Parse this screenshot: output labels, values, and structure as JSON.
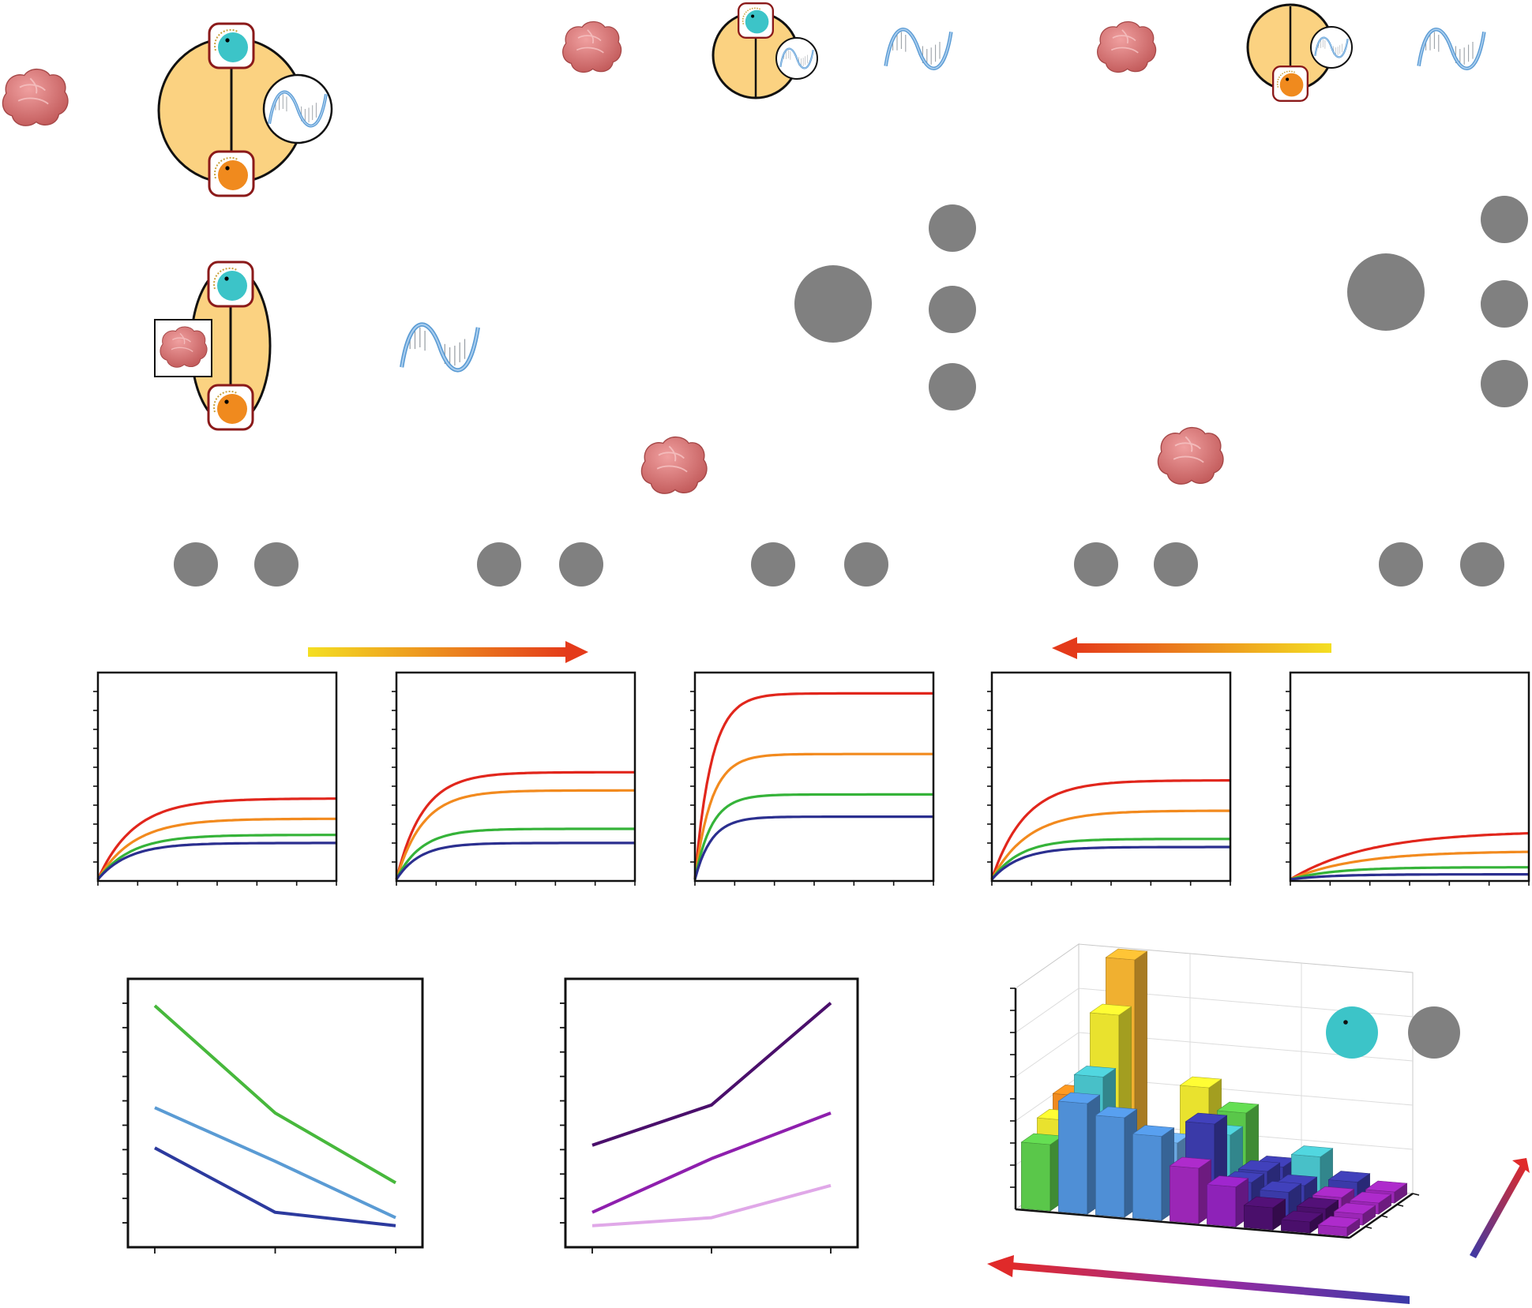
{
  "colors": {
    "cell_fill": "#fbd281",
    "cell_stroke": "#111111",
    "receptor_frame": "#8b1a1a",
    "teal": "#3cc4c8",
    "orange": "#f08a1e",
    "protein": "#d96f6f",
    "gray_disc": "#808080",
    "curve_red": "#e1261c",
    "curve_orange": "#f28a1e",
    "curve_green": "#35b339",
    "curve_blue": "#2b2f8f"
  },
  "icons": {
    "protein": "protein-blob-icon",
    "dna": "dna-helix-icon",
    "receptor": "receptor-dial-icon",
    "disc": "gray-disc-icon"
  },
  "chart_data": [
    {
      "type": "line",
      "panel": 1,
      "x": [
        0,
        1,
        2,
        3,
        4,
        5,
        6,
        7,
        8,
        9,
        10,
        11,
        12
      ],
      "series": [
        {
          "color": "#e1261c",
          "plateau": 0.4,
          "rate": 0.55
        },
        {
          "color": "#f28a1e",
          "plateau": 0.3,
          "rate": 0.55
        },
        {
          "color": "#35b339",
          "plateau": 0.22,
          "rate": 0.6
        },
        {
          "color": "#2b2f8f",
          "plateau": 0.18,
          "rate": 0.65
        }
      ],
      "ylim": [
        0,
        1
      ]
    },
    {
      "type": "line",
      "panel": 2,
      "x": [
        0,
        1,
        2,
        3,
        4,
        5,
        6,
        7,
        8,
        9,
        10,
        11,
        12
      ],
      "series": [
        {
          "color": "#e1261c",
          "plateau": 0.53,
          "rate": 0.75
        },
        {
          "color": "#f28a1e",
          "plateau": 0.44,
          "rate": 0.75
        },
        {
          "color": "#35b339",
          "plateau": 0.25,
          "rate": 0.8
        },
        {
          "color": "#2b2f8f",
          "plateau": 0.18,
          "rate": 0.85
        }
      ],
      "ylim": [
        0,
        1
      ]
    },
    {
      "type": "line",
      "panel": 3,
      "x": [
        0,
        1,
        2,
        3,
        4,
        5,
        6,
        7,
        8,
        9,
        10,
        11,
        12
      ],
      "series": [
        {
          "color": "#e1261c",
          "plateau": 0.92,
          "rate": 1.2
        },
        {
          "color": "#f28a1e",
          "plateau": 0.62,
          "rate": 1.2
        },
        {
          "color": "#35b339",
          "plateau": 0.42,
          "rate": 1.2
        },
        {
          "color": "#2b2f8f",
          "plateau": 0.31,
          "rate": 1.2
        }
      ],
      "ylim": [
        0,
        1
      ]
    },
    {
      "type": "line",
      "panel": 4,
      "x": [
        0,
        1,
        2,
        3,
        4,
        5,
        6,
        7,
        8,
        9,
        10,
        11,
        12
      ],
      "series": [
        {
          "color": "#e1261c",
          "plateau": 0.49,
          "rate": 0.6
        },
        {
          "color": "#f28a1e",
          "plateau": 0.34,
          "rate": 0.55
        },
        {
          "color": "#35b339",
          "plateau": 0.2,
          "rate": 0.7
        },
        {
          "color": "#2b2f8f",
          "plateau": 0.16,
          "rate": 0.7
        }
      ],
      "ylim": [
        0,
        1
      ]
    },
    {
      "type": "line",
      "panel": 5,
      "x": [
        0,
        1,
        2,
        3,
        4,
        5,
        6,
        7,
        8,
        9,
        10,
        11,
        12
      ],
      "series": [
        {
          "color": "#e1261c",
          "plateau": 0.24,
          "rate": 0.25
        },
        {
          "color": "#f28a1e",
          "plateau": 0.14,
          "rate": 0.3
        },
        {
          "color": "#35b339",
          "plateau": 0.06,
          "rate": 0.45
        },
        {
          "color": "#2b2f8f",
          "plateau": 0.025,
          "rate": 0.5
        }
      ],
      "ylim": [
        0,
        1
      ]
    },
    {
      "type": "line",
      "panel": 6,
      "x": [
        1,
        2,
        3
      ],
      "series": [
        {
          "color": "#47b83c",
          "values": [
            0.9,
            0.5,
            0.24
          ]
        },
        {
          "color": "#5a9bd4",
          "values": [
            0.52,
            0.32,
            0.11
          ]
        },
        {
          "color": "#2c3a9e",
          "values": [
            0.37,
            0.13,
            0.08
          ]
        }
      ],
      "ylim": [
        0,
        1
      ]
    },
    {
      "type": "line",
      "panel": 7,
      "x": [
        1,
        2,
        3
      ],
      "series": [
        {
          "color": "#4a0f6b",
          "values": [
            0.38,
            0.53,
            0.91
          ]
        },
        {
          "color": "#8e1fad",
          "values": [
            0.13,
            0.33,
            0.5
          ]
        },
        {
          "color": "#e0a8e8",
          "values": [
            0.08,
            0.11,
            0.23
          ]
        }
      ],
      "ylim": [
        0,
        1
      ]
    },
    {
      "type": "bar",
      "panel": 8,
      "three_d": true,
      "rows": 4,
      "cols": 9,
      "heights": [
        [
          0.3,
          0.5,
          0.45,
          0.38,
          0.25,
          0.18,
          0.1,
          0.05,
          0.04
        ],
        [
          0.36,
          0.57,
          0.2,
          0.3,
          0.4,
          0.15,
          0.12,
          0.06,
          0.05
        ],
        [
          0.42,
          0.8,
          0.18,
          0.24,
          0.3,
          0.15,
          0.1,
          0.06,
          0.05
        ],
        [
          0.25,
          1.0,
          0.18,
          0.45,
          0.35,
          0.12,
          0.18,
          0.08,
          0.05
        ]
      ],
      "zlim": [
        0,
        1
      ]
    }
  ]
}
